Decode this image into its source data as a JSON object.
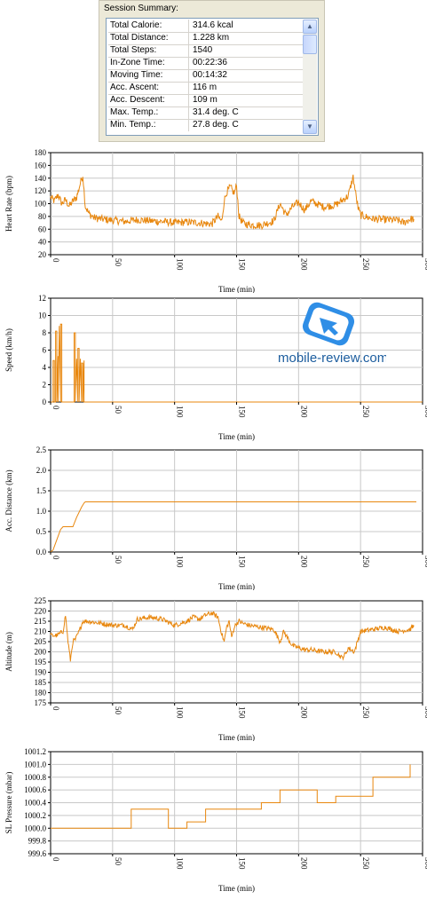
{
  "summary": {
    "title": "Session Summary:",
    "rows": [
      {
        "label": "Total Calorie:",
        "value": "314.6 kcal"
      },
      {
        "label": "Total Distance:",
        "value": "1.228 km"
      },
      {
        "label": "Total Steps:",
        "value": "1540"
      },
      {
        "label": "In-Zone Time:",
        "value": "00:22:36"
      },
      {
        "label": "Moving Time:",
        "value": "00:14:32"
      },
      {
        "label": "Acc. Ascent:",
        "value": "116 m"
      },
      {
        "label": "Acc. Descent:",
        "value": "109 m"
      },
      {
        "label": "Max. Temp.:",
        "value": "31.4 deg. C"
      },
      {
        "label": "Min. Temp.:",
        "value": "27.8 deg. C"
      }
    ],
    "scroll_up_icon": "arrow-up-icon",
    "scroll_down_icon": "arrow-down-icon"
  },
  "watermark": {
    "text": "mobile-review.com",
    "icon": "mobile-review-logo"
  },
  "colors": {
    "line": "#e8870e",
    "grid": "#c8c8c8",
    "axis": "#000000",
    "watermark": "#1c5d9e",
    "logo_blue": "#2f8ee6"
  },
  "chart_data": [
    {
      "type": "line",
      "xlabel": "Time (min)",
      "ylabel": "Heart Rate (bpm)",
      "xlim": [
        0,
        300
      ],
      "ylim": [
        20,
        180
      ],
      "xticks": [
        0,
        50,
        100,
        150,
        200,
        250,
        300
      ],
      "yticks": [
        20,
        40,
        60,
        80,
        100,
        120,
        140,
        160,
        180
      ],
      "xtick_labels": [
        "0",
        "50",
        "100",
        "150",
        "200",
        "250",
        "300"
      ],
      "ytick_labels": [
        "20",
        "40",
        "60",
        "80",
        "100",
        "120",
        "140",
        "160",
        "180"
      ],
      "grid": true,
      "x": [
        0,
        3,
        6,
        9,
        12,
        15,
        18,
        21,
        24,
        26,
        28,
        31,
        35,
        40,
        50,
        60,
        70,
        80,
        90,
        100,
        110,
        120,
        130,
        135,
        138,
        140,
        142,
        145,
        148,
        150,
        152,
        155,
        160,
        170,
        180,
        185,
        190,
        195,
        200,
        205,
        210,
        220,
        230,
        240,
        244,
        246,
        248,
        250,
        260,
        270,
        280,
        285,
        290,
        293
      ],
      "y": [
        110,
        104,
        114,
        100,
        106,
        96,
        104,
        110,
        132,
        145,
        96,
        84,
        78,
        76,
        74,
        72,
        75,
        73,
        72,
        70,
        71,
        70,
        68,
        80,
        72,
        104,
        118,
        126,
        116,
        128,
        80,
        70,
        67,
        66,
        73,
        100,
        82,
        95,
        102,
        90,
        104,
        95,
        98,
        112,
        142,
        116,
        93,
        82,
        76,
        75,
        74,
        70,
        76,
        76
      ],
      "noise": 6
    },
    {
      "type": "line",
      "xlabel": "Time (min)",
      "ylabel": "Speed (km/h)",
      "xlim": [
        0,
        300
      ],
      "ylim": [
        0,
        12
      ],
      "xticks": [
        0,
        50,
        100,
        150,
        200,
        250,
        300
      ],
      "yticks": [
        0,
        2,
        4,
        6,
        8,
        10,
        12
      ],
      "xtick_labels": [
        "0",
        "50",
        "100",
        "150",
        "200",
        "250",
        "300"
      ],
      "ytick_labels": [
        "0",
        "2",
        "4",
        "6",
        "8",
        "10",
        "12"
      ],
      "grid": true,
      "x": [
        0,
        2,
        2,
        3,
        3,
        4,
        4,
        5,
        5,
        6,
        6,
        7,
        7,
        8,
        8,
        9,
        9,
        11,
        11,
        19,
        19,
        20,
        20,
        21,
        21,
        22,
        22,
        23,
        23,
        24,
        24,
        25,
        25,
        26,
        26,
        27,
        27,
        28,
        28,
        300
      ],
      "y": [
        0,
        0,
        4.8,
        4.8,
        0,
        0,
        8.2,
        8.2,
        0,
        5.3,
        0,
        8.8,
        8.8,
        0,
        9,
        9,
        0,
        0,
        0,
        0,
        8,
        8,
        0,
        5,
        5,
        0,
        6.2,
        6.2,
        0,
        5,
        5,
        0,
        4.5,
        4.5,
        0,
        4.8,
        0,
        0,
        0,
        0
      ]
    },
    {
      "type": "line",
      "xlabel": "Time (min)",
      "ylabel": "Acc. Distance (km)",
      "xlim": [
        0,
        300
      ],
      "ylim": [
        0,
        2.5
      ],
      "xticks": [
        0,
        50,
        100,
        150,
        200,
        250,
        300
      ],
      "yticks": [
        0,
        0.5,
        1.0,
        1.5,
        2.0,
        2.5
      ],
      "xtick_labels": [
        "0",
        "50",
        "100",
        "150",
        "200",
        "250",
        "300"
      ],
      "ytick_labels": [
        "0.0",
        "0.5",
        "1.0",
        "1.5",
        "2.0",
        "2.5"
      ],
      "grid": true,
      "x": [
        0,
        2,
        5,
        8,
        10,
        18,
        21,
        25,
        27,
        28,
        295
      ],
      "y": [
        0,
        0.05,
        0.3,
        0.55,
        0.62,
        0.62,
        0.85,
        1.1,
        1.2,
        1.228,
        1.228
      ]
    },
    {
      "type": "line",
      "xlabel": "Time (min)",
      "ylabel": "Altitude (m)",
      "xlim": [
        0,
        300
      ],
      "ylim": [
        175,
        225
      ],
      "xticks": [
        0,
        50,
        100,
        150,
        200,
        250,
        300
      ],
      "yticks": [
        175,
        180,
        185,
        190,
        195,
        200,
        205,
        210,
        215,
        220,
        225
      ],
      "xtick_labels": [
        "0",
        "50",
        "100",
        "150",
        "200",
        "250",
        "300"
      ],
      "ytick_labels": [
        "175",
        "180",
        "185",
        "190",
        "195",
        "200",
        "205",
        "210",
        "215",
        "220",
        "225"
      ],
      "grid": true,
      "x": [
        0,
        5,
        10,
        12,
        14,
        16,
        18,
        20,
        23,
        26,
        30,
        40,
        50,
        60,
        66,
        70,
        80,
        90,
        100,
        110,
        115,
        120,
        125,
        130,
        135,
        138,
        140,
        142,
        144,
        146,
        148,
        150,
        152,
        155,
        160,
        170,
        180,
        185,
        188,
        190,
        195,
        200,
        205,
        210,
        220,
        230,
        235,
        238,
        240,
        245,
        250,
        260,
        270,
        280,
        290,
        293
      ],
      "y": [
        208,
        208,
        210,
        218,
        205,
        196,
        205,
        206,
        210,
        215,
        215,
        214,
        213,
        213,
        211,
        216,
        217,
        216,
        213,
        215,
        217,
        216,
        218,
        219,
        217,
        209,
        205,
        212,
        215,
        207,
        212,
        214,
        215,
        214,
        213,
        212,
        211,
        205,
        210,
        208,
        203,
        202,
        201,
        201,
        200,
        200,
        197,
        199,
        202,
        200,
        210,
        211,
        212,
        210,
        211,
        213
      ],
      "noise": 1.2
    },
    {
      "type": "line",
      "xlabel": "Time (min)",
      "ylabel": "SL Pressure (mbar)",
      "xlim": [
        0,
        300
      ],
      "ylim": [
        999.6,
        1001.2
      ],
      "xticks": [
        0,
        50,
        100,
        150,
        200,
        250,
        300
      ],
      "yticks": [
        999.6,
        999.8,
        1000.0,
        1000.2,
        1000.4,
        1000.6,
        1000.8,
        1001.0,
        1001.2
      ],
      "xtick_labels": [
        "0",
        "50",
        "100",
        "150",
        "200",
        "250",
        "300"
      ],
      "ytick_labels": [
        "999.6",
        "999.8",
        "1000.0",
        "1000.2",
        "1000.4",
        "1000.6",
        "1000.8",
        "1001.0",
        "1001.2"
      ],
      "grid": true,
      "x": [
        0,
        65,
        65,
        95,
        95,
        110,
        110,
        125,
        125,
        170,
        170,
        185,
        185,
        215,
        215,
        230,
        230,
        260,
        260,
        290,
        290
      ],
      "y": [
        1000.0,
        1000.0,
        1000.3,
        1000.3,
        1000.0,
        1000.0,
        1000.1,
        1000.1,
        1000.3,
        1000.3,
        1000.4,
        1000.4,
        1000.6,
        1000.6,
        1000.4,
        1000.4,
        1000.5,
        1000.5,
        1000.8,
        1000.8,
        1001.0
      ]
    }
  ]
}
